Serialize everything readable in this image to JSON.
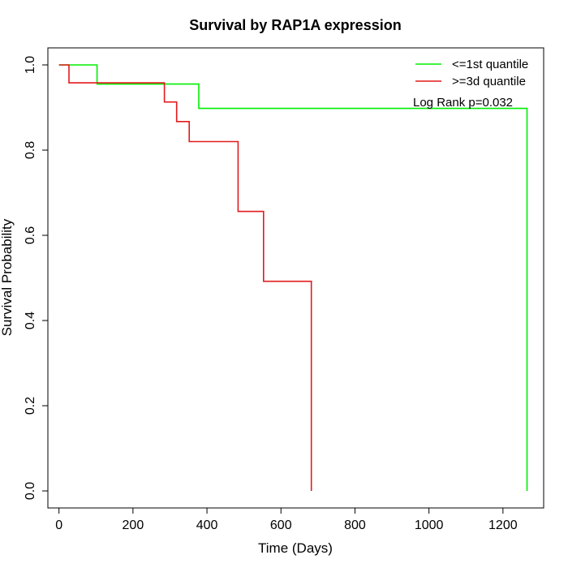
{
  "chart_data": {
    "type": "line",
    "title": "Survival by RAP1A expression",
    "xlabel": "Time (Days)",
    "ylabel": "Survival Probability",
    "xlim": [
      -30,
      1310
    ],
    "ylim": [
      -0.04,
      1.04
    ],
    "xticks": [
      0,
      200,
      400,
      600,
      800,
      1000,
      1200
    ],
    "yticks": [
      0.0,
      0.2,
      0.4,
      0.6,
      0.8,
      1.0
    ],
    "ytick_labels": [
      "0.0",
      "0.2",
      "0.4",
      "0.6",
      "0.8",
      "1.0"
    ],
    "grid": false,
    "legend_position": "top-right",
    "annotation": "Log Rank p=0.032",
    "series": [
      {
        "name": "<=1st quantile",
        "color": "#00ee00",
        "step": true,
        "points": [
          [
            0,
            1.0
          ],
          [
            103,
            1.0
          ],
          [
            103,
            0.955
          ],
          [
            378,
            0.955
          ],
          [
            378,
            0.898
          ],
          [
            1265,
            0.898
          ],
          [
            1265,
            0.0
          ]
        ]
      },
      {
        "name": ">=3d quantile",
        "color": "#e31a1c",
        "step": true,
        "points": [
          [
            0,
            1.0
          ],
          [
            27,
            1.0
          ],
          [
            27,
            0.958
          ],
          [
            285,
            0.958
          ],
          [
            285,
            0.913
          ],
          [
            318,
            0.913
          ],
          [
            318,
            0.867
          ],
          [
            352,
            0.867
          ],
          [
            352,
            0.82
          ],
          [
            484,
            0.82
          ],
          [
            484,
            0.656
          ],
          [
            553,
            0.656
          ],
          [
            553,
            0.492
          ],
          [
            682,
            0.492
          ],
          [
            682,
            0.0
          ]
        ]
      }
    ]
  }
}
